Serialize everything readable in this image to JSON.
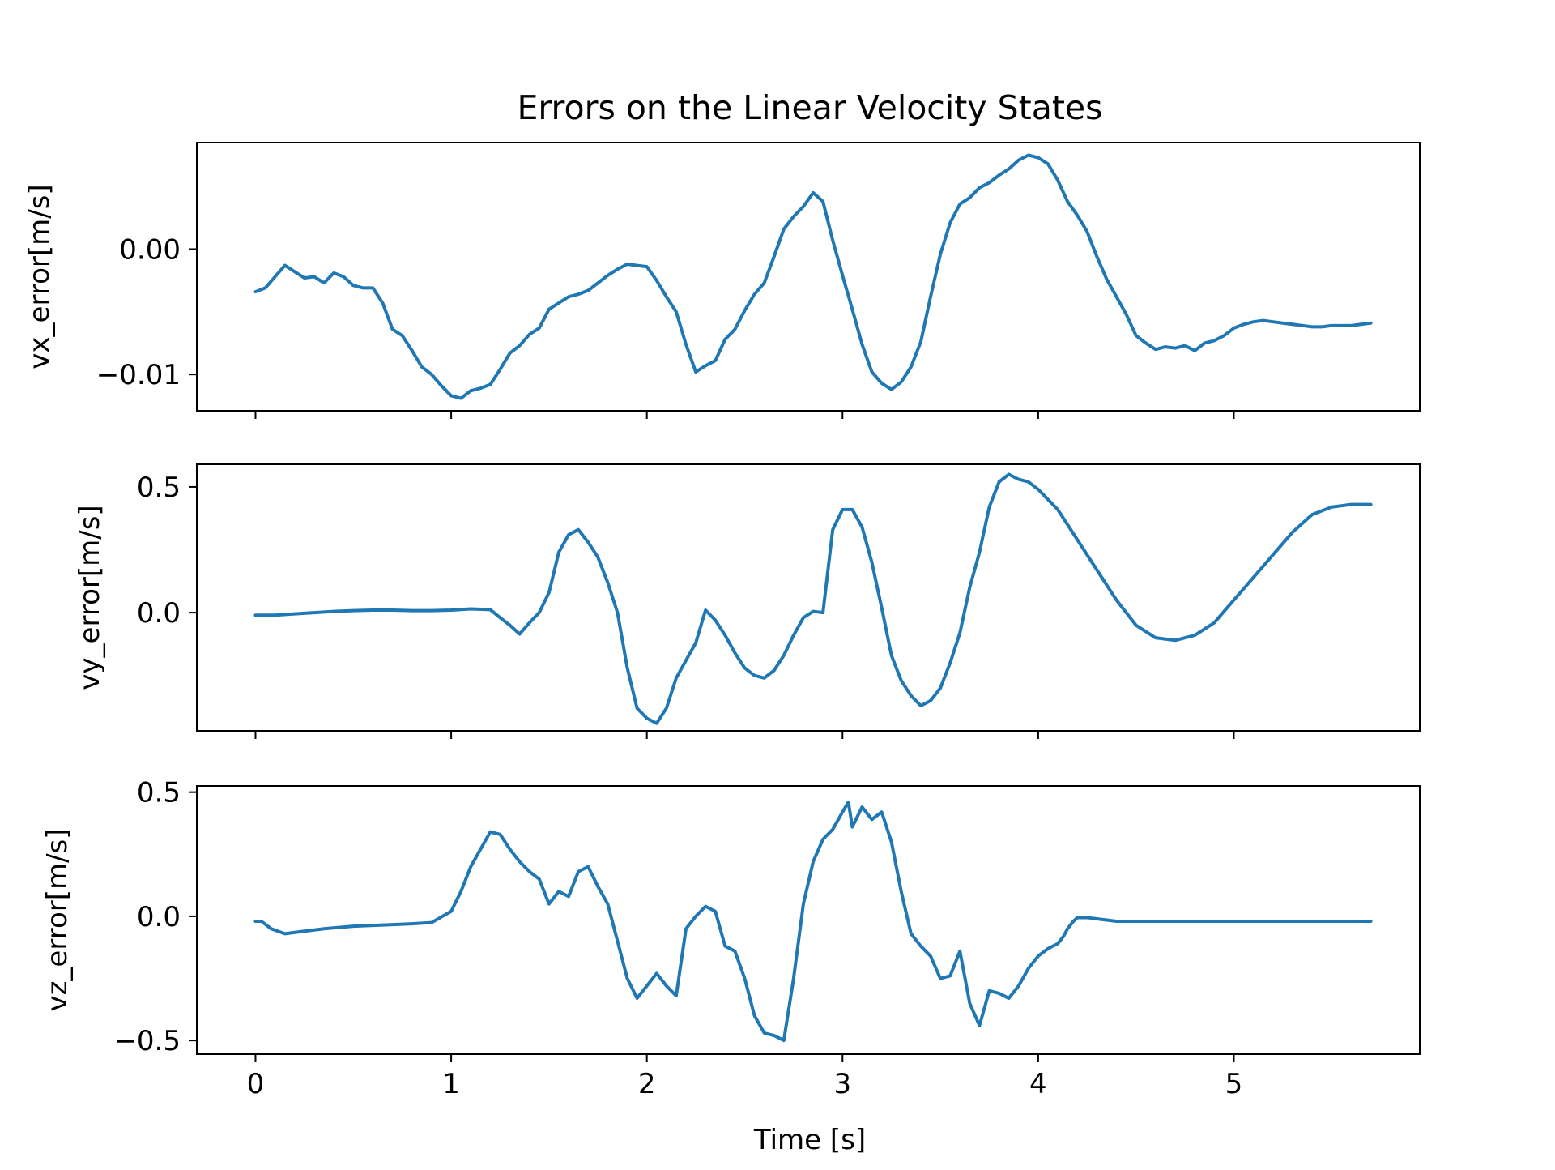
{
  "chart_data": {
    "type": "line",
    "title": "Errors on the Linear Velocity States",
    "xlabel": "Time [s]",
    "xlim": [
      -0.3,
      5.95
    ],
    "xticks": [
      0,
      1,
      2,
      3,
      4,
      5
    ],
    "xtick_labels": [
      "0",
      "1",
      "2",
      "3",
      "4",
      "5"
    ],
    "line_color": "#1f77b4",
    "grid": false,
    "legend": "none",
    "subplots": [
      {
        "ylabel": "vx_error[m/s]",
        "ylim": [
          -0.0129,
          0.0085
        ],
        "yticks": [
          0.0,
          -0.01
        ],
        "ytick_labels": [
          "0.00",
          "−0.01"
        ],
        "series": [
          {
            "x": [
              0,
              0.05,
              0.1,
              0.15,
              0.2,
              0.25,
              0.3,
              0.35,
              0.4,
              0.45,
              0.5,
              0.55,
              0.6,
              0.65,
              0.7,
              0.75,
              0.8,
              0.85,
              0.9,
              0.95,
              1.0,
              1.05,
              1.1,
              1.15,
              1.2,
              1.25,
              1.3,
              1.35,
              1.4,
              1.45,
              1.5,
              1.55,
              1.6,
              1.65,
              1.7,
              1.75,
              1.8,
              1.85,
              1.9,
              1.95,
              2.0,
              2.05,
              2.1,
              2.15,
              2.2,
              2.25,
              2.3,
              2.35,
              2.4,
              2.45,
              2.5,
              2.55,
              2.6,
              2.65,
              2.7,
              2.75,
              2.8,
              2.85,
              2.9,
              2.95,
              3.0,
              3.05,
              3.1,
              3.15,
              3.2,
              3.25,
              3.3,
              3.35,
              3.4,
              3.45,
              3.5,
              3.55,
              3.6,
              3.65,
              3.7,
              3.75,
              3.8,
              3.85,
              3.9,
              3.95,
              4.0,
              4.05,
              4.1,
              4.15,
              4.2,
              4.25,
              4.3,
              4.35,
              4.4,
              4.45,
              4.5,
              4.55,
              4.6,
              4.65,
              4.7,
              4.75,
              4.8,
              4.85,
              4.9,
              4.95,
              5.0,
              5.05,
              5.1,
              5.15,
              5.2,
              5.25,
              5.3,
              5.35,
              5.4,
              5.45,
              5.5,
              5.55,
              5.6,
              5.65,
              5.7
            ],
            "y": [
              -0.0034,
              -0.0031,
              -0.0022,
              -0.0013,
              -0.0018,
              -0.0023,
              -0.0022,
              -0.0027,
              -0.0019,
              -0.0022,
              -0.0029,
              -0.0031,
              -0.0031,
              -0.0043,
              -0.0064,
              -0.0069,
              -0.0081,
              -0.0094,
              -0.01,
              -0.0109,
              -0.0117,
              -0.0119,
              -0.0113,
              -0.0111,
              -0.0108,
              -0.0096,
              -0.0083,
              -0.0077,
              -0.0068,
              -0.0063,
              -0.0048,
              -0.0043,
              -0.0038,
              -0.0036,
              -0.0033,
              -0.0027,
              -0.0021,
              -0.0016,
              -0.0012,
              -0.0013,
              -0.0014,
              -0.0025,
              -0.0038,
              -0.005,
              -0.0076,
              -0.0098,
              -0.0093,
              -0.0089,
              -0.0072,
              -0.0064,
              -0.0049,
              -0.0036,
              -0.0027,
              -0.0006,
              0.0016,
              0.0026,
              0.0034,
              0.0045,
              0.0038,
              0.0007,
              -0.0021,
              -0.0048,
              -0.0076,
              -0.0098,
              -0.0107,
              -0.0112,
              -0.0106,
              -0.0094,
              -0.0074,
              -0.0038,
              -0.0004,
              0.0021,
              0.0036,
              0.0041,
              0.0049,
              0.0053,
              0.0059,
              0.0064,
              0.0071,
              0.0075,
              0.0073,
              0.0068,
              0.0055,
              0.0038,
              0.0027,
              0.0014,
              -0.0006,
              -0.0024,
              -0.0038,
              -0.0052,
              -0.0069,
              -0.0075,
              -0.008,
              -0.0078,
              -0.0079,
              -0.0077,
              -0.0081,
              -0.0075,
              -0.0073,
              -0.0069,
              -0.0063,
              -0.006,
              -0.0058,
              -0.0057,
              -0.0058,
              -0.0059,
              -0.006,
              -0.0061,
              -0.0062,
              -0.0062,
              -0.0061,
              -0.0061,
              -0.0061,
              -0.006,
              -0.0059
            ]
          }
        ]
      },
      {
        "ylabel": "vy_error[m/s]",
        "ylim": [
          -0.47,
          0.59
        ],
        "yticks": [
          0.5,
          0.0
        ],
        "ytick_labels": [
          "0.5",
          "0.0"
        ],
        "series": [
          {
            "x": [
              0,
              0.1,
              0.2,
              0.3,
              0.4,
              0.5,
              0.6,
              0.7,
              0.8,
              0.9,
              1.0,
              1.1,
              1.2,
              1.25,
              1.3,
              1.35,
              1.4,
              1.45,
              1.5,
              1.55,
              1.6,
              1.65,
              1.7,
              1.75,
              1.8,
              1.85,
              1.9,
              1.95,
              2.0,
              2.05,
              2.1,
              2.15,
              2.2,
              2.25,
              2.3,
              2.35,
              2.4,
              2.45,
              2.5,
              2.55,
              2.6,
              2.65,
              2.7,
              2.75,
              2.8,
              2.85,
              2.9,
              2.95,
              3.0,
              3.05,
              3.1,
              3.15,
              3.2,
              3.25,
              3.3,
              3.35,
              3.4,
              3.45,
              3.5,
              3.55,
              3.6,
              3.65,
              3.7,
              3.75,
              3.8,
              3.85,
              3.9,
              3.95,
              4.0,
              4.05,
              4.1,
              4.15,
              4.2,
              4.3,
              4.4,
              4.5,
              4.6,
              4.7,
              4.8,
              4.9,
              5.0,
              5.1,
              5.2,
              5.3,
              5.4,
              5.5,
              5.6,
              5.7
            ],
            "y": [
              -0.01,
              -0.01,
              -0.005,
              0.0,
              0.005,
              0.008,
              0.01,
              0.01,
              0.008,
              0.008,
              0.01,
              0.015,
              0.012,
              -0.02,
              -0.05,
              -0.085,
              -0.04,
              0.0,
              0.08,
              0.24,
              0.31,
              0.33,
              0.28,
              0.22,
              0.12,
              0.0,
              -0.22,
              -0.38,
              -0.42,
              -0.44,
              -0.38,
              -0.26,
              -0.19,
              -0.12,
              0.01,
              -0.03,
              -0.09,
              -0.16,
              -0.22,
              -0.25,
              -0.26,
              -0.23,
              -0.17,
              -0.09,
              -0.02,
              0.005,
              0.0,
              0.33,
              0.41,
              0.41,
              0.34,
              0.2,
              0.02,
              -0.17,
              -0.27,
              -0.33,
              -0.37,
              -0.35,
              -0.3,
              -0.2,
              -0.08,
              0.1,
              0.24,
              0.42,
              0.52,
              0.55,
              0.53,
              0.52,
              0.49,
              0.45,
              0.41,
              0.35,
              0.29,
              0.17,
              0.05,
              -0.05,
              -0.1,
              -0.11,
              -0.09,
              -0.04,
              0.05,
              0.14,
              0.23,
              0.32,
              0.39,
              0.42,
              0.43,
              0.43
            ]
          }
        ]
      },
      {
        "ylabel": "vz_error[m/s]",
        "ylim": [
          -0.555,
          0.525
        ],
        "yticks": [
          0.5,
          0.0,
          -0.5
        ],
        "ytick_labels": [
          "0.5",
          "0.0",
          "−0.5"
        ],
        "series": [
          {
            "x": [
              0,
              0.03,
              0.08,
              0.15,
              0.25,
              0.35,
              0.5,
              0.65,
              0.8,
              0.9,
              1.0,
              1.05,
              1.1,
              1.15,
              1.2,
              1.25,
              1.3,
              1.35,
              1.4,
              1.45,
              1.5,
              1.55,
              1.6,
              1.65,
              1.7,
              1.75,
              1.8,
              1.85,
              1.9,
              1.95,
              2.0,
              2.05,
              2.1,
              2.15,
              2.2,
              2.25,
              2.3,
              2.35,
              2.4,
              2.45,
              2.5,
              2.55,
              2.6,
              2.65,
              2.7,
              2.75,
              2.8,
              2.85,
              2.9,
              2.95,
              3.0,
              3.03,
              3.05,
              3.1,
              3.15,
              3.2,
              3.25,
              3.3,
              3.35,
              3.4,
              3.45,
              3.5,
              3.55,
              3.6,
              3.65,
              3.7,
              3.75,
              3.8,
              3.85,
              3.9,
              3.95,
              4.0,
              4.05,
              4.1,
              4.13,
              4.15,
              4.18,
              4.2,
              4.25,
              4.3,
              4.35,
              4.4,
              4.5,
              4.6,
              4.7,
              4.8,
              4.9,
              5.0,
              5.1,
              5.2,
              5.3,
              5.4,
              5.5,
              5.6,
              5.7
            ],
            "y": [
              -0.02,
              -0.02,
              -0.05,
              -0.07,
              -0.06,
              -0.05,
              -0.04,
              -0.035,
              -0.03,
              -0.025,
              0.02,
              0.1,
              0.2,
              0.27,
              0.34,
              0.33,
              0.27,
              0.22,
              0.18,
              0.15,
              0.05,
              0.1,
              0.08,
              0.18,
              0.2,
              0.12,
              0.05,
              -0.1,
              -0.25,
              -0.33,
              -0.28,
              -0.23,
              -0.28,
              -0.32,
              -0.05,
              0.0,
              0.04,
              0.02,
              -0.12,
              -0.14,
              -0.25,
              -0.4,
              -0.47,
              -0.48,
              -0.5,
              -0.25,
              0.05,
              0.22,
              0.31,
              0.35,
              0.42,
              0.46,
              0.36,
              0.44,
              0.39,
              0.42,
              0.3,
              0.1,
              -0.07,
              -0.12,
              -0.16,
              -0.25,
              -0.24,
              -0.14,
              -0.35,
              -0.44,
              -0.3,
              -0.31,
              -0.33,
              -0.28,
              -0.21,
              -0.16,
              -0.13,
              -0.11,
              -0.08,
              -0.05,
              -0.02,
              -0.005,
              -0.005,
              -0.01,
              -0.015,
              -0.02,
              -0.02,
              -0.02,
              -0.02,
              -0.02,
              -0.02,
              -0.02,
              -0.02,
              -0.02,
              -0.02,
              -0.02,
              -0.02,
              -0.02,
              -0.02
            ]
          }
        ]
      }
    ]
  }
}
